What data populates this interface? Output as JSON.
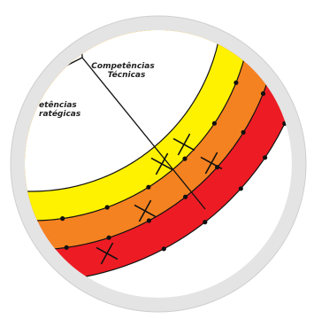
{
  "labels": {
    "technical_line1": "Competências",
    "technical_line2": "Técnicas",
    "strategic_line1": "etências",
    "strategic_line2": "ratégicas"
  },
  "colors": {
    "frame": "#e4e4e4",
    "frame_edge": "#cfcfcf",
    "inner_field": "#ffffff",
    "band_inner": "#fff200",
    "band_middle": "#f58220",
    "band_outer": "#ed1c24",
    "stroke": "#111111"
  },
  "icons": {
    "dot": "filled-circle",
    "cross": "x-mark"
  }
}
